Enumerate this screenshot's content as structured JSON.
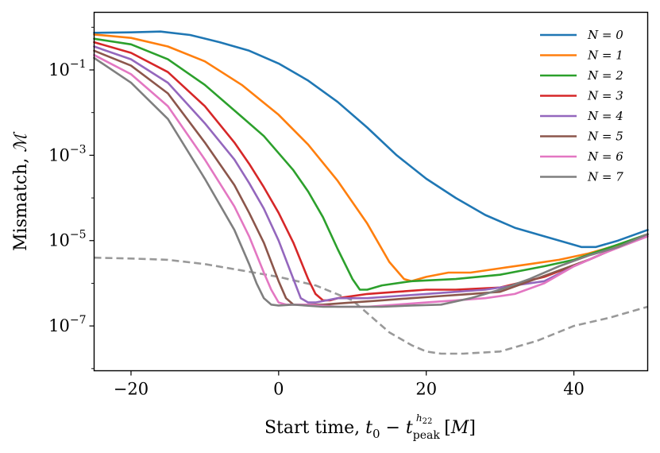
{
  "chart_data": {
    "type": "line",
    "xlabel": "Start time, t0 − t_peak^h22 [M]",
    "ylabel": "Mismatch, ℳ",
    "xlim": [
      -25,
      50
    ],
    "ylim_log10": [
      -8.05,
      0.35
    ],
    "y_scale": "log",
    "grid": false,
    "legend_position": "top-right",
    "x_ticks": [
      -20,
      0,
      20,
      40
    ],
    "x_tick_labels": [
      "−20",
      "0",
      "20",
      "40"
    ],
    "y_ticks_log10": [
      -1,
      -3,
      -5,
      -7
    ],
    "series": [
      {
        "name": "N = 0",
        "color": "#1f77b4",
        "dash": false,
        "x": [
          -25,
          -20,
          -16,
          -12,
          -8,
          -4,
          0,
          4,
          8,
          12,
          16,
          20,
          24,
          28,
          32,
          36,
          39,
          41,
          43,
          46,
          50
        ],
        "log10y": [
          -0.13,
          -0.12,
          -0.1,
          -0.18,
          -0.35,
          -0.55,
          -0.85,
          -1.25,
          -1.75,
          -2.35,
          -3.0,
          -3.55,
          -4.0,
          -4.4,
          -4.7,
          -4.9,
          -5.05,
          -5.15,
          -5.15,
          -5.0,
          -4.75
        ]
      },
      {
        "name": "N = 1",
        "color": "#ff7f0e",
        "dash": false,
        "x": [
          -25,
          -20,
          -15,
          -10,
          -5,
          0,
          4,
          8,
          12,
          15,
          17,
          18,
          20,
          23,
          26,
          30,
          34,
          38,
          42,
          46,
          50
        ],
        "log10y": [
          -0.17,
          -0.25,
          -0.45,
          -0.8,
          -1.35,
          -2.05,
          -2.75,
          -3.6,
          -4.6,
          -5.5,
          -5.9,
          -5.95,
          -5.85,
          -5.75,
          -5.75,
          -5.65,
          -5.55,
          -5.45,
          -5.3,
          -5.1,
          -4.85
        ]
      },
      {
        "name": "N = 2",
        "color": "#2ca02c",
        "dash": false,
        "x": [
          -25,
          -20,
          -15,
          -10,
          -5,
          -2,
          0,
          2,
          4,
          6,
          8,
          10,
          11,
          12,
          14,
          18,
          24,
          30,
          36,
          40,
          45,
          50
        ],
        "log10y": [
          -0.27,
          -0.4,
          -0.75,
          -1.35,
          -2.1,
          -2.55,
          -2.95,
          -3.35,
          -3.85,
          -4.45,
          -5.2,
          -5.9,
          -6.15,
          -6.15,
          -6.05,
          -5.95,
          -5.9,
          -5.8,
          -5.6,
          -5.45,
          -5.15,
          -4.85
        ]
      },
      {
        "name": "N = 3",
        "color": "#d62728",
        "dash": false,
        "x": [
          -25,
          -20,
          -15,
          -10,
          -6,
          -4,
          -2,
          0,
          2,
          4,
          5,
          6,
          7,
          8,
          12,
          16,
          20,
          24,
          30,
          36,
          42,
          50
        ],
        "log10y": [
          -0.35,
          -0.6,
          -1.05,
          -1.85,
          -2.7,
          -3.2,
          -3.75,
          -4.35,
          -5.05,
          -5.9,
          -6.25,
          -6.4,
          -6.4,
          -6.35,
          -6.25,
          -6.2,
          -6.15,
          -6.15,
          -6.1,
          -5.85,
          -5.45,
          -4.85
        ]
      },
      {
        "name": "N = 4",
        "color": "#9467bd",
        "dash": false,
        "x": [
          -25,
          -20,
          -15,
          -10,
          -6,
          -4,
          -2,
          0,
          2,
          3,
          4,
          5,
          8,
          12,
          16,
          20,
          24,
          28,
          32,
          36,
          40,
          44,
          50
        ],
        "log10y": [
          -0.45,
          -0.75,
          -1.3,
          -2.25,
          -3.1,
          -3.65,
          -4.25,
          -5.0,
          -5.9,
          -6.35,
          -6.45,
          -6.45,
          -6.35,
          -6.35,
          -6.3,
          -6.25,
          -6.2,
          -6.15,
          -6.05,
          -5.95,
          -5.6,
          -5.3,
          -4.85
        ]
      },
      {
        "name": "N = 5",
        "color": "#8c564b",
        "dash": false,
        "x": [
          -25,
          -20,
          -15,
          -10,
          -6,
          -4,
          -2,
          0,
          1,
          2,
          3,
          6,
          10,
          14,
          18,
          22,
          26,
          30,
          34,
          38,
          42,
          46,
          50
        ],
        "log10y": [
          -0.55,
          -0.9,
          -1.55,
          -2.7,
          -3.7,
          -4.35,
          -5.05,
          -5.95,
          -6.35,
          -6.5,
          -6.5,
          -6.5,
          -6.45,
          -6.4,
          -6.35,
          -6.3,
          -6.25,
          -6.2,
          -5.95,
          -5.7,
          -5.45,
          -5.15,
          -4.85
        ]
      },
      {
        "name": "N = 6",
        "color": "#e377c2",
        "dash": false,
        "x": [
          -25,
          -20,
          -15,
          -10,
          -6,
          -4,
          -2,
          -1,
          0,
          1,
          4,
          8,
          12,
          16,
          20,
          24,
          28,
          32,
          36,
          40,
          44,
          50
        ],
        "log10y": [
          -0.65,
          -1.1,
          -1.85,
          -3.1,
          -4.2,
          -4.9,
          -5.75,
          -6.15,
          -6.45,
          -6.5,
          -6.5,
          -6.55,
          -6.55,
          -6.5,
          -6.45,
          -6.4,
          -6.35,
          -6.25,
          -6.0,
          -5.6,
          -5.3,
          -4.9
        ]
      },
      {
        "name": "N = 7",
        "color": "#7f7f7f",
        "dash": false,
        "x": [
          -25,
          -20,
          -15,
          -10,
          -6,
          -4,
          -3,
          -2,
          -1,
          0,
          2,
          6,
          10,
          14,
          18,
          22,
          26,
          30,
          34,
          38,
          42,
          46,
          50
        ],
        "log10y": [
          -0.72,
          -1.3,
          -2.15,
          -3.55,
          -4.75,
          -5.55,
          -6.0,
          -6.35,
          -6.5,
          -6.52,
          -6.5,
          -6.55,
          -6.55,
          -6.55,
          -6.52,
          -6.5,
          -6.35,
          -6.15,
          -5.9,
          -5.6,
          -5.35,
          -5.15,
          -4.85
        ]
      },
      {
        "name": "",
        "color": "#999999",
        "dash": true,
        "x": [
          -25,
          -20,
          -15,
          -10,
          -5,
          0,
          5,
          10,
          15,
          18,
          20,
          22,
          25,
          30,
          35,
          40,
          45,
          50
        ],
        "log10y": [
          -5.4,
          -5.42,
          -5.45,
          -5.55,
          -5.7,
          -5.85,
          -6.05,
          -6.4,
          -7.15,
          -7.45,
          -7.6,
          -7.65,
          -7.65,
          -7.6,
          -7.35,
          -7.0,
          -6.8,
          -6.55
        ]
      }
    ]
  }
}
